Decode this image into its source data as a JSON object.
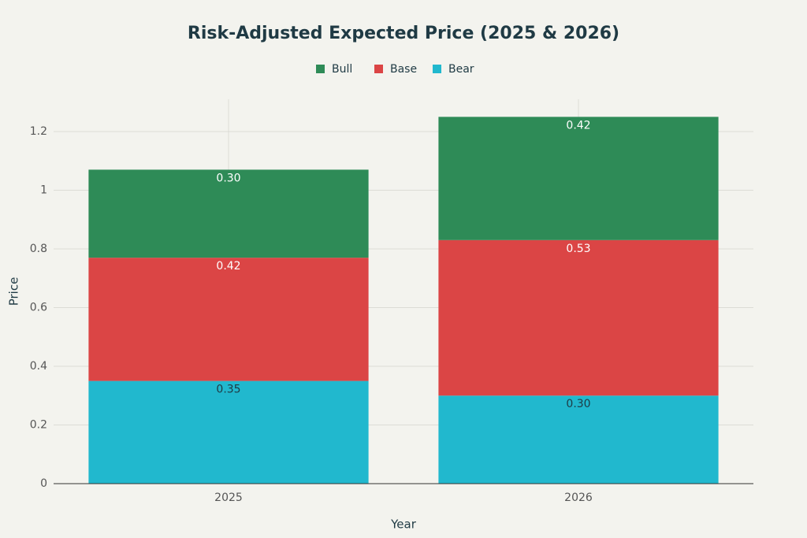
{
  "chart_data": {
    "type": "stacked-bar",
    "title": "Risk-Adjusted Expected Price (2025 & 2026)",
    "x_label": "Year",
    "y_label": "Price",
    "categories": [
      "2025",
      "2026"
    ],
    "series": [
      {
        "name": "Bear",
        "color": "#21b8ce",
        "values": [
          0.35,
          0.3
        ],
        "value_labels": [
          "0.35",
          "0.30"
        ]
      },
      {
        "name": "Base",
        "color": "#db4545",
        "values": [
          0.42,
          0.53
        ],
        "value_labels": [
          "0.42",
          "0.53"
        ]
      },
      {
        "name": "Bull",
        "color": "#2e8b57",
        "values": [
          0.3,
          0.42
        ],
        "value_labels": [
          "0.30",
          "0.42"
        ]
      }
    ],
    "ylim": [
      0,
      1.31
    ],
    "yticks": [
      0,
      0.2,
      0.4,
      0.6,
      0.8,
      1,
      1.2
    ],
    "grid": true
  }
}
